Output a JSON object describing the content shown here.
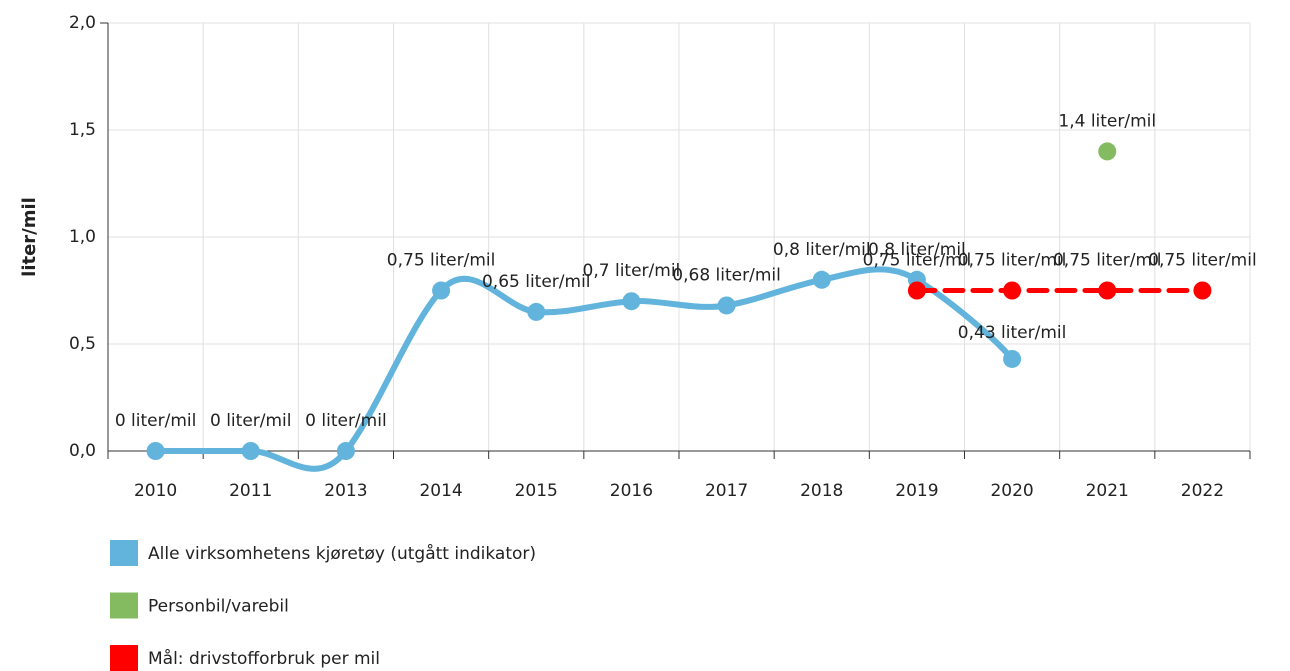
{
  "chart_data": {
    "type": "line",
    "y_label": "liter/mil",
    "categories": [
      "2010",
      "2011",
      "2013",
      "2014",
      "2015",
      "2016",
      "2017",
      "2018",
      "2019",
      "2020",
      "2021",
      "2022"
    ],
    "ylim": [
      0,
      2
    ],
    "yticks": [
      {
        "value": 0,
        "label": "0,0"
      },
      {
        "value": 0.5,
        "label": "0,5"
      },
      {
        "value": 1,
        "label": "1,0"
      },
      {
        "value": 1.5,
        "label": "1,5"
      },
      {
        "value": 2,
        "label": "2,0"
      }
    ],
    "grid": true,
    "legend": "bottom",
    "series": [
      {
        "name": "Alle virksomhetens kjøretøy (utgått indikator)",
        "color": "#62b4dc",
        "style": "spline",
        "values": [
          0,
          0,
          0,
          0.75,
          0.65,
          0.7,
          0.68,
          0.8,
          0.8,
          0.43,
          null,
          null
        ],
        "value_labels": [
          "0 liter/mil",
          "0 liter/mil",
          "0 liter/mil",
          "0,75 liter/mil",
          "0,65 liter/mil",
          "0,7 liter/mil",
          "0,68 liter/mil",
          "0,8 liter/mil",
          "0,8 liter/mil",
          "0,43 liter/mil",
          null,
          null
        ]
      },
      {
        "name": "Personbil/varebil",
        "color": "#84bb60",
        "style": "scatter",
        "values": [
          null,
          null,
          null,
          null,
          null,
          null,
          null,
          null,
          null,
          null,
          1.4,
          null
        ],
        "value_labels": [
          null,
          null,
          null,
          null,
          null,
          null,
          null,
          null,
          null,
          null,
          "1,4 liter/mil",
          null
        ]
      },
      {
        "name": "Mål: drivstofforbruk per mil",
        "color": "#ff0000",
        "style": "dashed",
        "values": [
          null,
          null,
          null,
          null,
          null,
          null,
          null,
          null,
          0.75,
          0.75,
          0.75,
          0.75
        ],
        "value_labels": [
          null,
          null,
          null,
          null,
          null,
          null,
          null,
          null,
          "0,75 liter/mil",
          "0,75 liter/mil",
          "0,75 liter/mil",
          "0,75 liter/mil"
        ]
      }
    ]
  }
}
